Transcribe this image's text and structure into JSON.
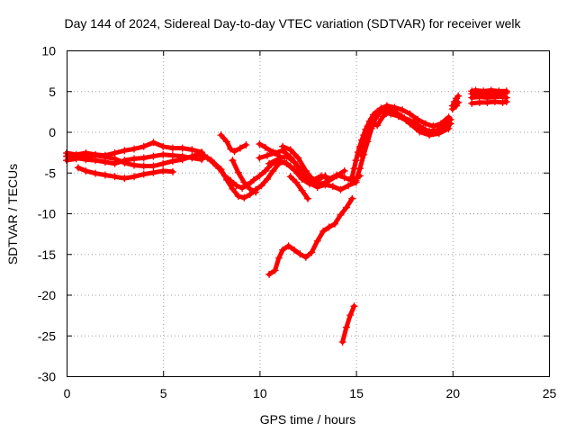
{
  "chart_data": {
    "type": "scatter",
    "title": "Day 144 of 2024, Sidereal Day-to-day VTEC variation (SDTVAR) for receiver welk",
    "xlabel": "GPS time / hours",
    "ylabel": "SDTVAR / TECUs",
    "xlim": [
      0,
      25
    ],
    "ylim": [
      -30,
      10
    ],
    "xticks": [
      0,
      5,
      10,
      15,
      20,
      25
    ],
    "yticks": [
      10,
      5,
      0,
      -5,
      -10,
      -15,
      -20,
      -25,
      -30
    ],
    "grid": true,
    "legend": "none",
    "marker": "plus",
    "color": "#ff0000",
    "segments": [
      {
        "points": [
          [
            0.0,
            -2.6
          ],
          [
            0.5,
            -2.8
          ],
          [
            1.0,
            -2.6
          ],
          [
            1.5,
            -2.8
          ],
          [
            2.0,
            -2.9
          ],
          [
            2.5,
            -2.6
          ],
          [
            3.0,
            -2.3
          ],
          [
            3.5,
            -2.1
          ],
          [
            4.0,
            -1.8
          ],
          [
            4.5,
            -1.3
          ],
          [
            5.0,
            -1.8
          ],
          [
            5.5,
            -2.0
          ],
          [
            6.0,
            -2.0
          ],
          [
            6.5,
            -2.2
          ],
          [
            7.0,
            -2.5
          ]
        ]
      },
      {
        "points": [
          [
            0.0,
            -3.0
          ],
          [
            0.5,
            -3.2
          ],
          [
            1.0,
            -3.4
          ],
          [
            1.5,
            -3.5
          ],
          [
            2.0,
            -3.7
          ],
          [
            2.5,
            -3.9
          ],
          [
            3.0,
            -3.5
          ],
          [
            3.5,
            -3.3
          ],
          [
            4.0,
            -3.2
          ],
          [
            4.5,
            -3.0
          ],
          [
            5.0,
            -2.8
          ],
          [
            5.5,
            -2.9
          ],
          [
            6.0,
            -3.0
          ],
          [
            6.5,
            -3.2
          ],
          [
            7.0,
            -3.4
          ]
        ]
      },
      {
        "points": [
          [
            0.0,
            -3.5
          ],
          [
            0.5,
            -3.3
          ],
          [
            1.0,
            -3.0
          ],
          [
            1.5,
            -2.9
          ],
          [
            2.0,
            -3.1
          ],
          [
            2.5,
            -3.3
          ],
          [
            3.0,
            -3.8
          ],
          [
            3.5,
            -4.1
          ],
          [
            4.0,
            -4.2
          ],
          [
            4.5,
            -4.2
          ],
          [
            5.0,
            -3.9
          ],
          [
            5.5,
            -3.6
          ],
          [
            6.0,
            -3.4
          ],
          [
            6.5,
            -3.0
          ],
          [
            7.0,
            -2.6
          ]
        ]
      },
      {
        "points": [
          [
            0.6,
            -4.4
          ],
          [
            1.0,
            -4.8
          ],
          [
            1.5,
            -5.1
          ],
          [
            2.0,
            -5.3
          ],
          [
            2.5,
            -5.5
          ],
          [
            3.0,
            -5.7
          ],
          [
            3.5,
            -5.5
          ],
          [
            4.0,
            -5.2
          ],
          [
            4.5,
            -5.0
          ],
          [
            5.0,
            -4.8
          ],
          [
            5.5,
            -4.9
          ]
        ]
      },
      {
        "points": [
          [
            7.0,
            -3.0
          ],
          [
            7.3,
            -3.2
          ],
          [
            7.6,
            -3.8
          ],
          [
            7.9,
            -4.5
          ],
          [
            8.2,
            -5.4
          ],
          [
            8.5,
            -6.0
          ],
          [
            8.8,
            -6.6
          ],
          [
            9.1,
            -6.9
          ],
          [
            9.4,
            -6.5
          ],
          [
            9.7,
            -5.9
          ],
          [
            10.0,
            -5.4
          ],
          [
            10.3,
            -4.8
          ],
          [
            10.6,
            -4.0
          ],
          [
            11.0,
            -3.6
          ],
          [
            11.4,
            -3.9
          ],
          [
            11.8,
            -4.7
          ],
          [
            12.2,
            -5.8
          ],
          [
            12.6,
            -6.4
          ],
          [
            13.0,
            -5.9
          ],
          [
            13.4,
            -5.4
          ]
        ]
      },
      {
        "points": [
          [
            7.0,
            -2.7
          ],
          [
            7.5,
            -3.5
          ],
          [
            8.0,
            -4.6
          ],
          [
            8.3,
            -5.9
          ],
          [
            8.6,
            -7.0
          ],
          [
            8.9,
            -7.9
          ],
          [
            9.2,
            -8.1
          ],
          [
            9.5,
            -7.7
          ],
          [
            9.8,
            -7.1
          ],
          [
            10.1,
            -6.6
          ],
          [
            10.4,
            -5.8
          ],
          [
            10.7,
            -4.8
          ],
          [
            11.0,
            -3.9
          ],
          [
            11.3,
            -3.7
          ],
          [
            11.6,
            -4.2
          ]
        ]
      },
      {
        "points": [
          [
            10.0,
            -3.2
          ],
          [
            10.4,
            -2.9
          ],
          [
            10.8,
            -2.6
          ],
          [
            11.2,
            -2.3
          ],
          [
            11.6,
            -3.1
          ],
          [
            12.0,
            -4.3
          ],
          [
            12.4,
            -5.3
          ],
          [
            12.8,
            -5.9
          ],
          [
            13.2,
            -5.4
          ],
          [
            13.6,
            -5.8
          ],
          [
            14.0,
            -5.3
          ],
          [
            14.4,
            -5.6
          ],
          [
            14.8,
            -6.0
          ],
          [
            15.2,
            -5.4
          ]
        ]
      },
      {
        "points": [
          [
            10.5,
            -3.9
          ],
          [
            11.0,
            -3.3
          ],
          [
            11.4,
            -3.0
          ],
          [
            11.8,
            -3.7
          ],
          [
            12.2,
            -5.2
          ],
          [
            12.6,
            -6.3
          ],
          [
            13.0,
            -6.8
          ],
          [
            13.4,
            -6.5
          ],
          [
            13.8,
            -6.7
          ],
          [
            14.2,
            -7.1
          ],
          [
            14.6,
            -6.6
          ],
          [
            15.0,
            -6.2
          ]
        ]
      },
      {
        "points": [
          [
            11.2,
            -1.8
          ],
          [
            11.6,
            -2.2
          ],
          [
            12.0,
            -3.2
          ],
          [
            12.4,
            -4.8
          ],
          [
            12.8,
            -6.0
          ],
          [
            13.2,
            -6.4
          ],
          [
            13.6,
            -6.0
          ],
          [
            14.0,
            -5.4
          ],
          [
            14.4,
            -4.8
          ]
        ]
      },
      {
        "points": [
          [
            8.0,
            -0.4
          ],
          [
            8.3,
            -1.2
          ],
          [
            8.5,
            -2.1
          ],
          [
            8.7,
            -2.4
          ],
          [
            9.0,
            -2.0
          ],
          [
            9.3,
            -1.6
          ]
        ]
      },
      {
        "points": [
          [
            8.6,
            -3.5
          ],
          [
            8.9,
            -5.0
          ],
          [
            9.2,
            -6.2
          ],
          [
            9.5,
            -7.0
          ],
          [
            9.8,
            -7.4
          ]
        ]
      },
      {
        "points": [
          [
            10.0,
            -1.5
          ],
          [
            10.3,
            -1.9
          ],
          [
            10.7,
            -2.5
          ],
          [
            11.0,
            -2.9
          ]
        ]
      },
      {
        "points": [
          [
            11.6,
            -5.5
          ],
          [
            11.9,
            -6.2
          ],
          [
            12.2,
            -7.2
          ],
          [
            12.5,
            -8.2
          ]
        ]
      },
      {
        "points": [
          [
            10.5,
            -17.5
          ],
          [
            10.8,
            -17.0
          ],
          [
            11.0,
            -15.5
          ],
          [
            11.2,
            -14.5
          ],
          [
            11.5,
            -14.0
          ],
          [
            11.8,
            -14.5
          ],
          [
            12.1,
            -15.0
          ],
          [
            12.4,
            -15.4
          ],
          [
            12.7,
            -14.8
          ],
          [
            13.0,
            -13.4
          ],
          [
            13.3,
            -12.2
          ],
          [
            13.6,
            -11.7
          ],
          [
            13.9,
            -11.3
          ],
          [
            14.2,
            -10.2
          ],
          [
            14.5,
            -9.3
          ],
          [
            14.8,
            -8.2
          ]
        ]
      },
      {
        "points": [
          [
            14.3,
            -25.8
          ],
          [
            14.5,
            -24.0
          ],
          [
            14.7,
            -22.5
          ],
          [
            14.9,
            -21.4
          ]
        ]
      },
      {
        "points": [
          [
            14.8,
            -5.5
          ],
          [
            15.0,
            -3.5
          ],
          [
            15.2,
            -1.8
          ],
          [
            15.4,
            -0.4
          ],
          [
            15.6,
            0.7
          ],
          [
            15.8,
            1.6
          ],
          [
            16.0,
            2.3
          ],
          [
            16.3,
            2.9
          ],
          [
            16.6,
            3.2
          ],
          [
            17.0,
            3.0
          ],
          [
            17.4,
            2.7
          ],
          [
            17.8,
            2.2
          ],
          [
            18.2,
            1.5
          ],
          [
            18.6,
            1.0
          ],
          [
            19.0,
            0.7
          ],
          [
            19.4,
            1.0
          ],
          [
            19.8,
            1.8
          ]
        ]
      },
      {
        "points": [
          [
            14.9,
            -4.5
          ],
          [
            15.1,
            -2.5
          ],
          [
            15.3,
            -1.0
          ],
          [
            15.5,
            0.3
          ],
          [
            15.7,
            1.3
          ],
          [
            15.9,
            2.1
          ],
          [
            16.1,
            2.5
          ],
          [
            16.4,
            2.4
          ],
          [
            16.8,
            2.2
          ],
          [
            17.2,
            1.9
          ],
          [
            17.6,
            1.4
          ],
          [
            18.0,
            0.8
          ],
          [
            18.4,
            0.3
          ],
          [
            18.8,
            0.1
          ],
          [
            19.2,
            0.2
          ],
          [
            19.6,
            0.8
          ],
          [
            19.9,
            1.5
          ]
        ]
      },
      {
        "points": [
          [
            15.0,
            -6.0
          ],
          [
            15.2,
            -4.5
          ],
          [
            15.4,
            -2.8
          ],
          [
            15.6,
            -1.2
          ],
          [
            15.8,
            0.4
          ],
          [
            16.0,
            1.6
          ],
          [
            16.3,
            2.6
          ],
          [
            16.6,
            2.8
          ],
          [
            17.0,
            2.5
          ],
          [
            17.5,
            1.7
          ],
          [
            18.0,
            1.2
          ],
          [
            18.5,
            0.4
          ],
          [
            19.0,
            -0.2
          ],
          [
            19.5,
            0.3
          ],
          [
            19.9,
            1.0
          ]
        ]
      },
      {
        "points": [
          [
            15.3,
            -3.0
          ],
          [
            15.4,
            -1.5
          ],
          [
            15.6,
            0.0
          ],
          [
            15.8,
            1.0
          ],
          [
            16.1,
            0.8
          ],
          [
            16.4,
            1.9
          ],
          [
            16.8,
            2.6
          ],
          [
            17.3,
            2.0
          ],
          [
            17.8,
            1.0
          ],
          [
            18.3,
            0.0
          ],
          [
            18.8,
            -0.4
          ],
          [
            19.3,
            -0.2
          ],
          [
            19.8,
            0.4
          ]
        ]
      },
      {
        "points": [
          [
            20.0,
            3.2
          ],
          [
            20.1,
            3.7
          ],
          [
            20.2,
            4.1
          ],
          [
            20.3,
            4.4
          ]
        ]
      },
      {
        "points": [
          [
            20.0,
            2.8
          ],
          [
            20.2,
            3.2
          ],
          [
            20.3,
            3.6
          ]
        ]
      },
      {
        "points": [
          [
            21.0,
            3.5
          ],
          [
            21.4,
            3.6
          ],
          [
            21.8,
            3.6
          ],
          [
            22.2,
            3.7
          ],
          [
            22.6,
            3.6
          ],
          [
            22.8,
            3.7
          ]
        ]
      },
      {
        "points": [
          [
            21.0,
            4.2
          ],
          [
            21.4,
            4.3
          ],
          [
            21.8,
            4.2
          ],
          [
            22.2,
            4.3
          ],
          [
            22.6,
            4.3
          ],
          [
            22.8,
            4.2
          ]
        ]
      },
      {
        "points": [
          [
            21.0,
            4.7
          ],
          [
            21.4,
            4.8
          ],
          [
            21.8,
            4.7
          ],
          [
            22.2,
            4.8
          ],
          [
            22.6,
            4.8
          ],
          [
            22.8,
            4.8
          ]
        ]
      },
      {
        "points": [
          [
            21.0,
            5.0
          ],
          [
            21.2,
            5.1
          ],
          [
            21.6,
            5.0
          ],
          [
            22.0,
            5.1
          ],
          [
            22.4,
            5.0
          ],
          [
            22.8,
            5.0
          ]
        ]
      }
    ]
  }
}
